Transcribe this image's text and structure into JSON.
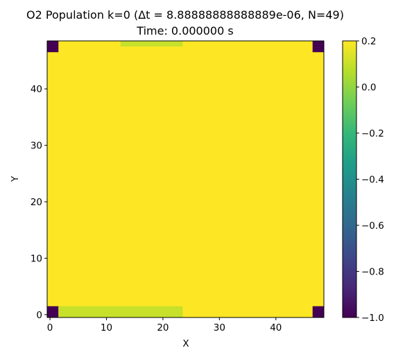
{
  "chart_data": {
    "type": "heatmap",
    "title_line1": "O2 Population k=0 (Δt = 8.88888888888889e-06, N=49)",
    "title_line2": "Time: 0.000000 s",
    "xlabel": "X",
    "ylabel": "Y",
    "grid_size": 49,
    "xlim": [
      -0.5,
      48.5
    ],
    "ylim": [
      -0.5,
      48.5
    ],
    "x_ticks": [
      0,
      10,
      20,
      30,
      40
    ],
    "y_ticks": [
      0,
      10,
      20,
      30,
      40
    ],
    "background_value": 0.2,
    "cells": [
      {
        "x0": 0,
        "x1": 1,
        "y0": 0,
        "y1": 1,
        "value": -1.0
      },
      {
        "x0": 47,
        "x1": 48,
        "y0": 0,
        "y1": 1,
        "value": -1.0
      },
      {
        "x0": 0,
        "x1": 1,
        "y0": 47,
        "y1": 48,
        "value": -1.0
      },
      {
        "x0": 47,
        "x1": 48,
        "y0": 47,
        "y1": 48,
        "value": -1.0
      },
      {
        "x0": 2,
        "x1": 23,
        "y0": 0,
        "y1": 1,
        "value": 0.1
      },
      {
        "x0": 13,
        "x1": 23,
        "y0": 48,
        "y1": 48,
        "value": 0.1
      }
    ],
    "colorbar": {
      "vmin": -1.0,
      "vmax": 0.2,
      "ticks": [
        0.2,
        0.0,
        -0.2,
        -0.4,
        -0.6,
        -0.8,
        -1.0
      ],
      "tick_labels": [
        "0.2",
        "0.0",
        "−0.2",
        "−0.4",
        "−0.6",
        "−0.8",
        "−1.0"
      ]
    },
    "colormap": "viridis",
    "colormap_stops": [
      "#440154",
      "#482878",
      "#3e4989",
      "#31688e",
      "#26828e",
      "#1f9e89",
      "#35b779",
      "#6ece58",
      "#b5de2b",
      "#fde725"
    ]
  }
}
